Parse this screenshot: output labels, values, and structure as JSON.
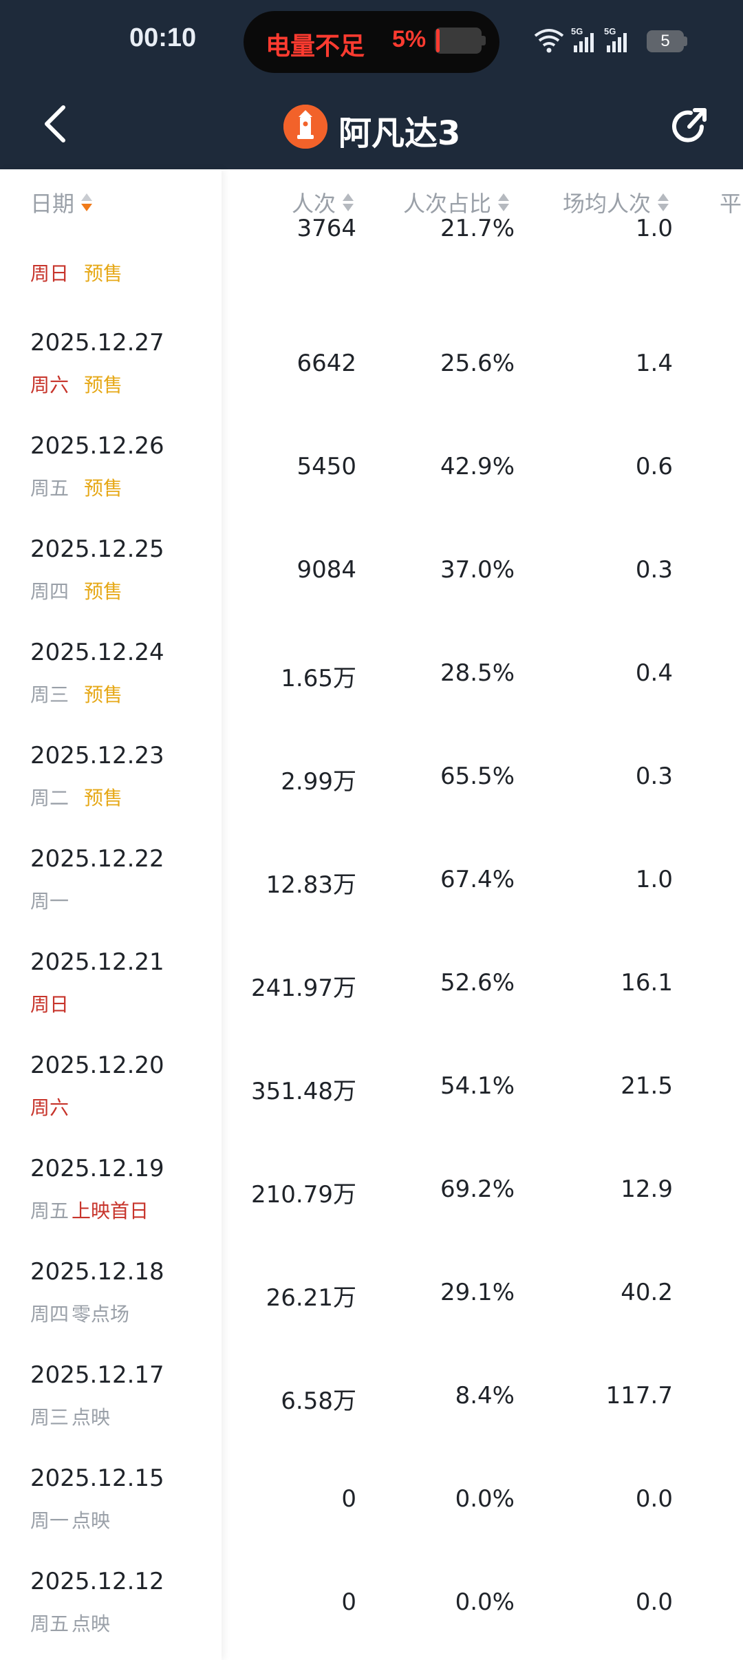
{
  "status": {
    "time": "00:10",
    "low_battery_text": "电量不足",
    "low_battery_percent": "5%",
    "battery_level": "5",
    "network": "5G"
  },
  "header": {
    "title": "阿凡达3",
    "icons": [
      "back-icon",
      "movie-logo-icon",
      "share-icon"
    ]
  },
  "table": {
    "columns": [
      "日期",
      "人次",
      "人次占比",
      "场均人次",
      "平"
    ],
    "partial_row": {
      "day": "周日",
      "tag": "预售",
      "people": "3764",
      "share": "21.7%",
      "avg": "1.0"
    },
    "rows": [
      {
        "date": "2025.12.27",
        "day": "周六",
        "tag": "预售",
        "people": "6642",
        "share": "25.6%",
        "avg": "1.4"
      },
      {
        "date": "2025.12.26",
        "day": "周五",
        "tag": "预售",
        "people": "5450",
        "share": "42.9%",
        "avg": "0.6"
      },
      {
        "date": "2025.12.25",
        "day": "周四",
        "tag": "预售",
        "people": "9084",
        "share": "37.0%",
        "avg": "0.3"
      },
      {
        "date": "2025.12.24",
        "day": "周三",
        "tag": "预售",
        "people": "1.65万",
        "share": "28.5%",
        "avg": "0.4"
      },
      {
        "date": "2025.12.23",
        "day": "周二",
        "tag": "预售",
        "people": "2.99万",
        "share": "65.5%",
        "avg": "0.3"
      },
      {
        "date": "2025.12.22",
        "day": "周一",
        "tag": "",
        "people": "12.83万",
        "share": "67.4%",
        "avg": "1.0"
      },
      {
        "date": "2025.12.21",
        "day": "周日",
        "tag": "",
        "people": "241.97万",
        "share": "52.6%",
        "avg": "16.1"
      },
      {
        "date": "2025.12.20",
        "day": "周六",
        "tag": "",
        "people": "351.48万",
        "share": "54.1%",
        "avg": "21.5"
      },
      {
        "date": "2025.12.19",
        "day": "周五",
        "tag": "上映首日",
        "people": "210.79万",
        "share": "69.2%",
        "avg": "12.9"
      },
      {
        "date": "2025.12.18",
        "day": "周四",
        "tag": "零点场",
        "people": "26.21万",
        "share": "29.1%",
        "avg": "40.2"
      },
      {
        "date": "2025.12.17",
        "day": "周三",
        "tag": "点映",
        "people": "6.58万",
        "share": "8.4%",
        "avg": "117.7"
      },
      {
        "date": "2025.12.15",
        "day": "周一",
        "tag": "点映",
        "people": "0",
        "share": "0.0%",
        "avg": "0.0"
      },
      {
        "date": "2025.12.12",
        "day": "周五",
        "tag": "点映",
        "people": "0",
        "share": "0.0%",
        "avg": "0.0"
      }
    ]
  },
  "colors": {
    "header_bg": "#1e2a3a",
    "weekend_red": "#c7342b",
    "presale_yellow": "#e6a817",
    "sort_active": "#f07a1a"
  }
}
